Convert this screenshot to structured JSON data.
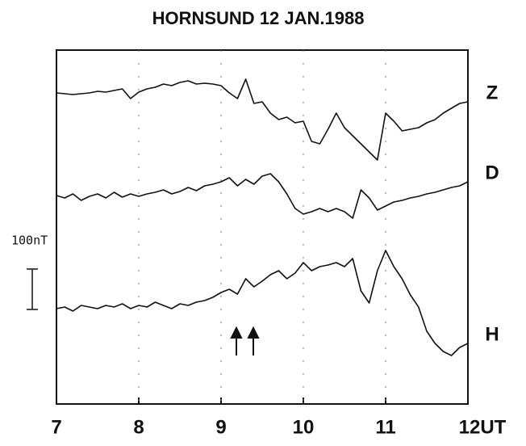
{
  "chart_data": {
    "type": "line",
    "title": "HORNSUND 12 JAN.1988",
    "x": [
      7,
      7.1,
      7.2,
      7.3,
      7.4,
      7.5,
      7.6,
      7.7,
      7.8,
      7.9,
      8,
      8.1,
      8.2,
      8.3,
      8.4,
      8.5,
      8.6,
      8.7,
      8.8,
      8.9,
      9,
      9.1,
      9.2,
      9.3,
      9.4,
      9.5,
      9.6,
      9.7,
      9.8,
      9.9,
      10,
      10.1,
      10.2,
      10.3,
      10.4,
      10.5,
      10.6,
      10.7,
      10.8,
      10.9,
      11,
      11.1,
      11.2,
      11.3,
      11.4,
      11.5,
      11.6,
      11.7,
      11.8,
      11.9,
      12
    ],
    "series": [
      {
        "name": "Z",
        "color": "#111111",
        "values": [
          770,
          768,
          766,
          768,
          770,
          774,
          772,
          776,
          780,
          756,
          772,
          780,
          784,
          792,
          788,
          796,
          800,
          792,
          794,
          792,
          788,
          770,
          756,
          804,
          744,
          748,
          720,
          704,
          710,
          696,
          700,
          650,
          644,
          680,
          720,
          684,
          664,
          644,
          624,
          604,
          720,
          700,
          676,
          680,
          684,
          696,
          704,
          720,
          732,
          744,
          748
        ]
      },
      {
        "name": "D",
        "color": "#111111",
        "values": [
          516,
          510,
          520,
          504,
          514,
          520,
          510,
          524,
          512,
          520,
          514,
          520,
          524,
          530,
          520,
          526,
          536,
          528,
          540,
          544,
          550,
          560,
          540,
          556,
          544,
          564,
          570,
          550,
          520,
          484,
          470,
          476,
          484,
          476,
          484,
          476,
          460,
          530,
          510,
          480,
          490,
          500,
          504,
          510,
          514,
          520,
          524,
          530,
          536,
          540,
          550
        ]
      },
      {
        "name": "H",
        "color": "#111111",
        "values": [
          236,
          240,
          230,
          244,
          240,
          236,
          244,
          240,
          248,
          236,
          244,
          240,
          252,
          244,
          236,
          248,
          244,
          252,
          256,
          264,
          276,
          284,
          272,
          310,
          290,
          304,
          320,
          330,
          310,
          324,
          350,
          330,
          340,
          344,
          350,
          340,
          360,
          280,
          250,
          330,
          380,
          340,
          310,
          270,
          240,
          180,
          150,
          130,
          120,
          140,
          150
        ]
      }
    ],
    "xlim": [
      7,
      12
    ],
    "xticks": [
      7,
      8,
      9,
      10,
      11,
      {
        "value": 12,
        "label": "12UT"
      }
    ],
    "ylim": [
      0,
      876
    ],
    "scale_label": "100nT",
    "grid": true
  }
}
